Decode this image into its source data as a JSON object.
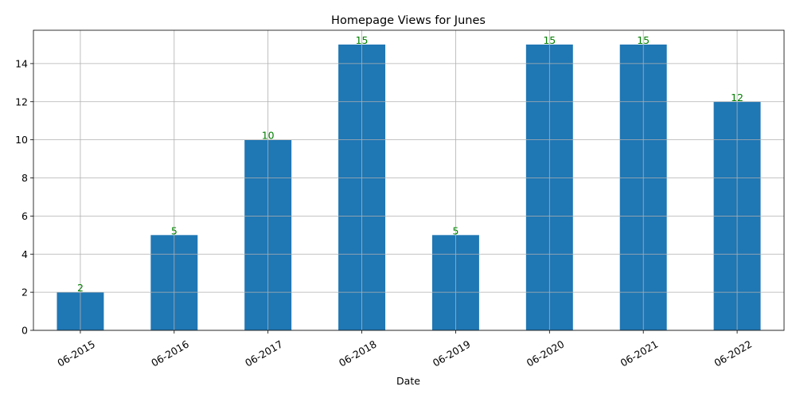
{
  "chart_data": {
    "type": "bar",
    "title": "Homepage Views for Junes",
    "xlabel": "Date",
    "ylabel": "",
    "categories": [
      "06-2015",
      "06-2016",
      "06-2017",
      "06-2018",
      "06-2019",
      "06-2020",
      "06-2021",
      "06-2022"
    ],
    "values": [
      2,
      5,
      10,
      15,
      5,
      15,
      15,
      12
    ],
    "ylim": [
      0,
      15.75
    ],
    "yticks": [
      0,
      2,
      4,
      6,
      8,
      10,
      12,
      14
    ],
    "grid": true,
    "colors": {
      "bar": "#1f77b4",
      "data_label": "#008000",
      "grid": "#b0b0b0",
      "axis": "#000000"
    }
  }
}
